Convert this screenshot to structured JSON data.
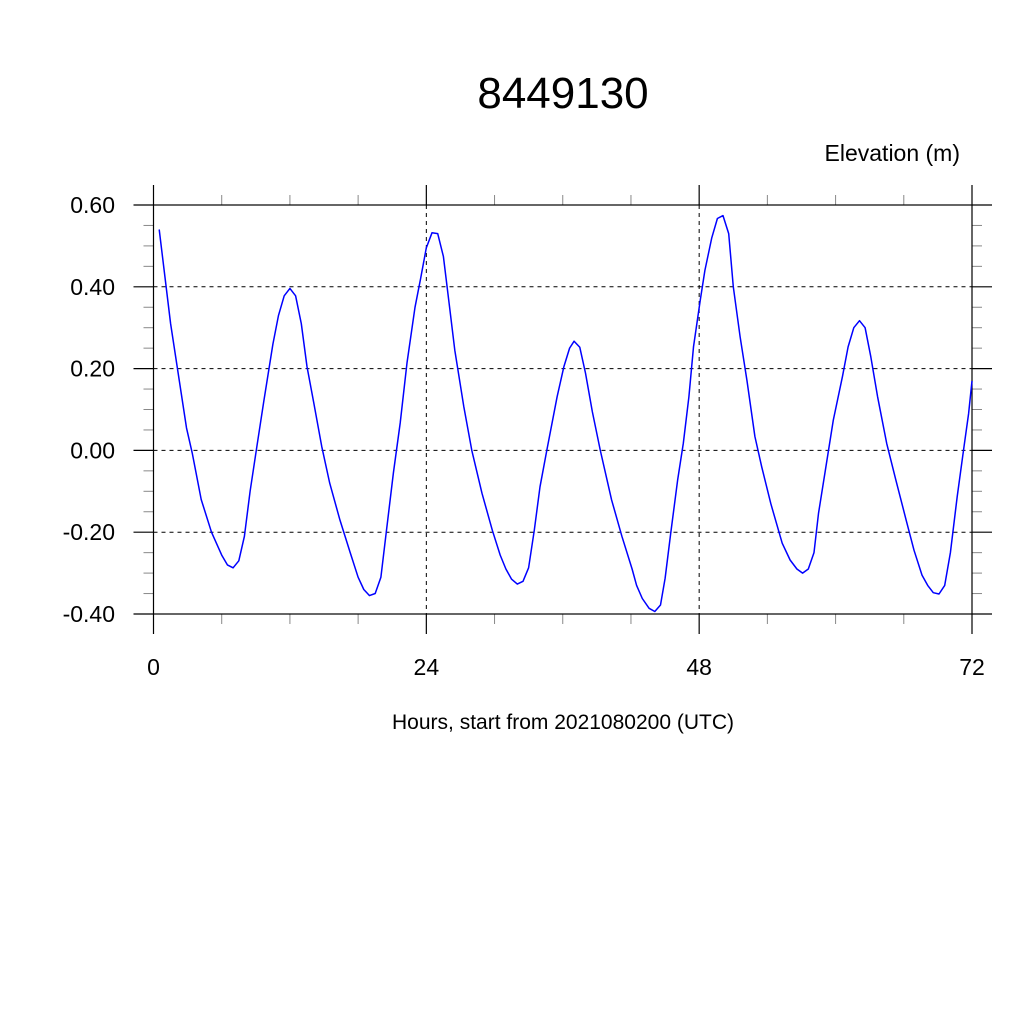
{
  "chart_data": {
    "type": "line",
    "title": "8449130",
    "ylabel": "Elevation (m)",
    "xlabel": "Hours, start from 2021080200 (UTC)",
    "xlim": [
      0,
      72
    ],
    "ylim": [
      -0.4,
      0.6
    ],
    "x_ticks": [
      0,
      24,
      48,
      72
    ],
    "x_tick_labels": [
      "0",
      "24",
      "48",
      "72"
    ],
    "x_minor_step": 6,
    "y_ticks": [
      0.6,
      0.4,
      0.2,
      0.0,
      -0.2,
      -0.4
    ],
    "y_tick_labels": [
      "0.60",
      "0.40",
      "0.20",
      "0.00",
      "-0.20",
      "-0.40"
    ],
    "y_minor_step": 0.05,
    "grid": "dashed, at major ticks",
    "line_color": "#0000ff",
    "series": [
      {
        "x": [
          0.5,
          1.5,
          2.9,
          3.4,
          4.2,
          5.1,
          6.0,
          6.5,
          7.0,
          7.5,
          8.0,
          8.5,
          9.1,
          9.7,
          10.5,
          11.0,
          11.5,
          12.0,
          12.5,
          13.0,
          13.5,
          14.1,
          14.8,
          15.5,
          16.4,
          17.3,
          18.0,
          18.5,
          19.0,
          19.5,
          20.0,
          20.5,
          21.1,
          21.7,
          22.3,
          23.0,
          23.5,
          24.0,
          24.5,
          25.0,
          25.5,
          26.0,
          26.5,
          27.3,
          28.0,
          28.9,
          29.8,
          30.5,
          31.0,
          31.5,
          32.0,
          32.5,
          33.0,
          33.5,
          34.0,
          34.6,
          35.5,
          36.1,
          36.6,
          37.0,
          37.5,
          38.0,
          38.6,
          39.3,
          40.3,
          41.2,
          42.1,
          42.5,
          43.0,
          43.6,
          44.1,
          44.6,
          45.0,
          45.5,
          46.1,
          46.6,
          47.1,
          47.5,
          48.1,
          48.5,
          49.1,
          49.6,
          50.1,
          50.6,
          51.0,
          51.6,
          52.2,
          52.9,
          53.5,
          54.3,
          55.3,
          56.0,
          56.6,
          57.1,
          57.6,
          58.1,
          58.5,
          59.1,
          59.8,
          60.6,
          61.1,
          61.6,
          62.1,
          62.6,
          63.1,
          63.7,
          64.5,
          65.3,
          66.2,
          66.9,
          67.6,
          68.1,
          68.6,
          69.1,
          69.6,
          70.1,
          70.7,
          71.3,
          71.7,
          72.0
        ],
        "y": [
          0.54,
          0.31,
          0.055,
          -0.006,
          -0.12,
          -0.2,
          -0.256,
          -0.28,
          -0.287,
          -0.27,
          -0.21,
          -0.1,
          0.01,
          0.12,
          0.26,
          0.33,
          0.378,
          0.396,
          0.378,
          0.31,
          0.205,
          0.116,
          0.01,
          -0.08,
          -0.17,
          -0.25,
          -0.31,
          -0.34,
          -0.355,
          -0.35,
          -0.31,
          -0.195,
          -0.055,
          0.067,
          0.214,
          0.35,
          0.42,
          0.495,
          0.532,
          0.53,
          0.474,
          0.36,
          0.245,
          0.107,
          0.0,
          -0.105,
          -0.195,
          -0.256,
          -0.29,
          -0.315,
          -0.327,
          -0.32,
          -0.287,
          -0.195,
          -0.089,
          0.0,
          0.131,
          0.205,
          0.25,
          0.267,
          0.252,
          0.189,
          0.095,
          0.0,
          -0.121,
          -0.21,
          -0.29,
          -0.33,
          -0.362,
          -0.386,
          -0.394,
          -0.378,
          -0.313,
          -0.203,
          -0.073,
          0.017,
          0.131,
          0.253,
          0.368,
          0.44,
          0.519,
          0.567,
          0.574,
          0.53,
          0.4,
          0.278,
          0.172,
          0.034,
          -0.04,
          -0.13,
          -0.227,
          -0.268,
          -0.29,
          -0.3,
          -0.29,
          -0.25,
          -0.154,
          -0.048,
          0.074,
          0.18,
          0.253,
          0.3,
          0.317,
          0.3,
          0.229,
          0.131,
          0.017,
          -0.072,
          -0.17,
          -0.244,
          -0.305,
          -0.33,
          -0.348,
          -0.351,
          -0.33,
          -0.25,
          -0.113,
          0.009,
          0.09,
          0.17
        ]
      }
    ]
  }
}
